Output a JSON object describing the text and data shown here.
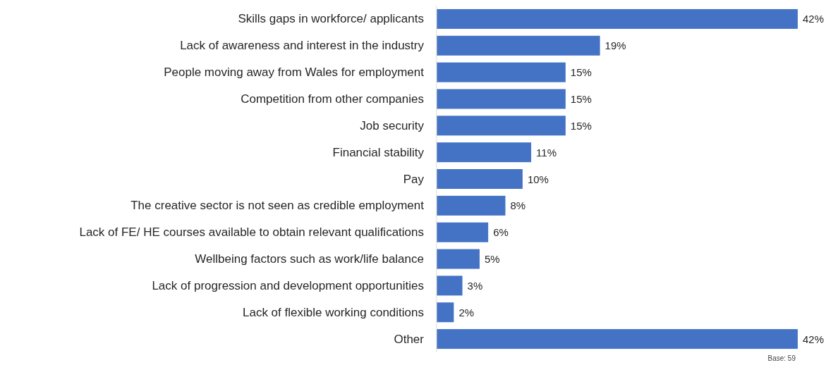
{
  "chart_data": {
    "type": "bar",
    "orientation": "horizontal",
    "categories": [
      "Skills gaps in workforce/ applicants",
      "Lack of awareness and interest in the industry",
      "People moving away from Wales for employment",
      "Competition from other companies",
      "Job security",
      "Financial stability",
      "Pay",
      "The creative sector is not seen as credible employment",
      "Lack of FE/ HE courses available to obtain relevant qualifications",
      "Wellbeing factors such as work/life balance",
      "Lack of progression and development opportunities",
      "Lack of flexible working conditions",
      "Other"
    ],
    "values": [
      42,
      19,
      15,
      15,
      15,
      11,
      10,
      8,
      6,
      5,
      3,
      2,
      42
    ],
    "value_labels": [
      "42%",
      "19%",
      "15%",
      "15%",
      "15%",
      "11%",
      "10%",
      "8%",
      "6%",
      "5%",
      "3%",
      "2%",
      "42%"
    ],
    "color": "#4472c4",
    "annotations": [
      "Base: 59"
    ]
  }
}
